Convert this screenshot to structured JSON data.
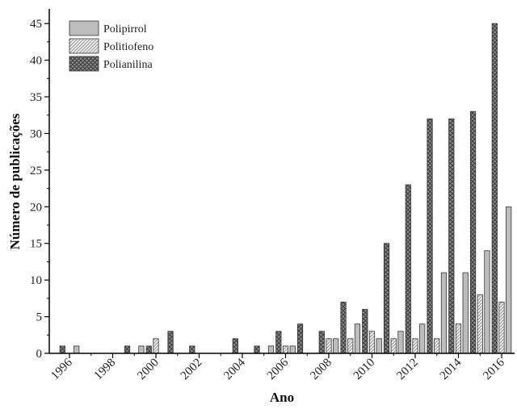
{
  "chart_data": {
    "type": "bar",
    "title": "",
    "xlabel": "Ano",
    "ylabel": "Número de publicações",
    "ylim": [
      0,
      47
    ],
    "yticks": [
      0,
      5,
      10,
      15,
      20,
      25,
      30,
      35,
      40,
      45
    ],
    "xtick_labels": [
      "1996",
      "1998",
      "2000",
      "2002",
      "2004",
      "2006",
      "2008",
      "2010",
      "2012",
      "2014",
      "2016"
    ],
    "categories": [
      "1996",
      "1997",
      "1998",
      "1999",
      "2000",
      "2001",
      "2002",
      "2003",
      "2004",
      "2005",
      "2006",
      "2007",
      "2008",
      "2009",
      "2010",
      "2011",
      "2012",
      "2013",
      "2014",
      "2015",
      "2016"
    ],
    "series": [
      {
        "name": "Polianilina",
        "pattern": "crosshatch",
        "color": "#7a7a7a",
        "values": [
          1,
          0,
          0,
          1,
          1,
          3,
          1,
          0,
          2,
          1,
          3,
          4,
          3,
          7,
          6,
          15,
          23,
          32,
          32,
          33,
          45
        ]
      },
      {
        "name": "Politiofeno",
        "pattern": "diagonal",
        "color": "#d8d8d8",
        "values": [
          0,
          0,
          0,
          0,
          2,
          0,
          0,
          0,
          0,
          0,
          1,
          0,
          2,
          2,
          3,
          2,
          2,
          2,
          4,
          8,
          7
        ]
      },
      {
        "name": "Polipirrol",
        "pattern": "solid",
        "color": "#bdbdbd",
        "values": [
          1,
          0,
          0,
          1,
          0,
          0,
          0,
          0,
          0,
          1,
          1,
          0,
          2,
          4,
          2,
          3,
          4,
          11,
          11,
          14,
          20
        ]
      }
    ],
    "legend": {
      "position": "top-left",
      "entries": [
        "Polipirrol",
        "Politiofeno",
        "Polianilina"
      ]
    },
    "grid": false
  }
}
